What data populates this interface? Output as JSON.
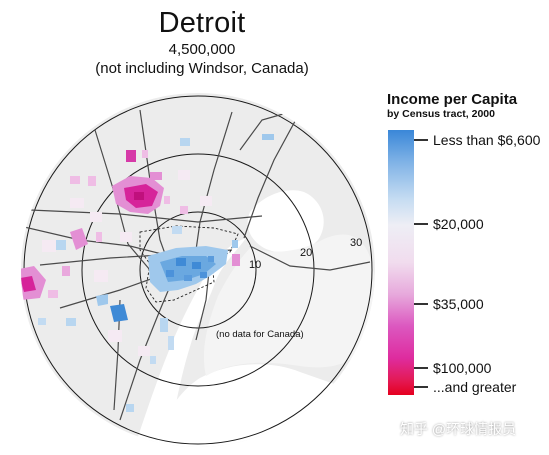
{
  "title": "Detroit",
  "population": "4,500,000",
  "subtitle": "(not including Windsor, Canada)",
  "map": {
    "ring_labels": [
      "10",
      "20",
      "30"
    ],
    "no_data_note": "(no data for Canada)"
  },
  "legend": {
    "title": "Income per Capita",
    "subtitle": "by Census tract, 2000",
    "labels": [
      "Less than $6,600",
      "$20,000",
      "$35,000",
      "$100,000",
      "...and greater"
    ],
    "low_color": "#3a87d8",
    "mid_color": "#eeeef5",
    "high_color": "#de2c9f",
    "top_color": "#e5001f"
  },
  "watermark": "知乎 @环球情报员"
}
